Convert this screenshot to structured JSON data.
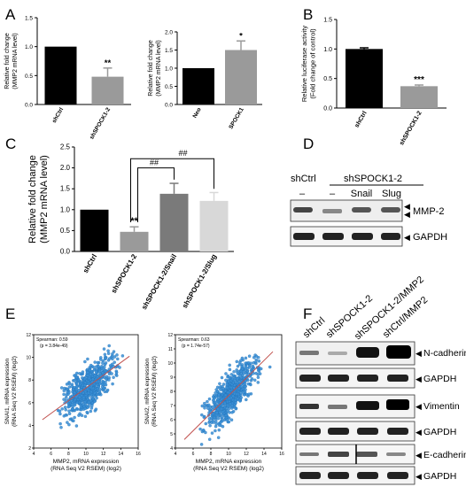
{
  "panels": {
    "A": "A",
    "B": "B",
    "C": "C",
    "D": "D",
    "E": "E",
    "F": "F"
  },
  "colors": {
    "black": "#000000",
    "grey": "#9a9a9a",
    "dark_grey": "#7a7a7a",
    "light_grey": "#d8d8d8",
    "scatter_point": "#3a8fd6",
    "fit_line": "#c0504d"
  },
  "chart_data": [
    {
      "id": "A1",
      "type": "bar",
      "ylabel": "Relative fold change\n(MMP2 mRNA level)",
      "ylim": [
        0,
        1.5
      ],
      "yticks": [
        "0.0",
        "0.5",
        "1.0",
        "1.5"
      ],
      "categories": [
        "shCtrl",
        "shSPOCK1-2"
      ],
      "values": [
        1.0,
        0.48
      ],
      "errors": [
        0,
        0.15
      ],
      "annotations": [
        "",
        "**"
      ]
    },
    {
      "id": "A2",
      "type": "bar",
      "ylabel": "Relative fold change\n(MMP2 mRNA level)",
      "ylim": [
        0,
        2.0
      ],
      "yticks": [
        "0.0",
        "0.5",
        "1.0",
        "1.5",
        "2.0"
      ],
      "categories": [
        "Neo",
        "SPOCK1"
      ],
      "values": [
        1.0,
        1.5
      ],
      "errors": [
        0,
        0.25
      ],
      "annotations": [
        "",
        "*"
      ]
    },
    {
      "id": "B",
      "type": "bar",
      "ylabel": "Relative luciferase activity\n(Fold change of control)",
      "ylim": [
        0,
        1.5
      ],
      "yticks": [
        "0.0",
        "0.5",
        "1.0",
        "1.5"
      ],
      "categories": [
        "shCtrl",
        "shSPOCK1-2"
      ],
      "values": [
        1.0,
        0.37
      ],
      "errors": [
        0.02,
        0.02
      ],
      "annotations": [
        "",
        "***"
      ]
    },
    {
      "id": "C",
      "type": "bar",
      "ylabel": "Relative fold change\n(MMP2 mRNA level)",
      "ylim": [
        0,
        2.5
      ],
      "yticks": [
        "0.0",
        "0.5",
        "1.0",
        "1.5",
        "2.0",
        "2.5"
      ],
      "categories": [
        "shCtrl",
        "shSPOCK1-2",
        "shSPOCK1-2/Snail",
        "shSPOCK1-2/Slug"
      ],
      "values": [
        1.0,
        0.47,
        1.38,
        1.21
      ],
      "errors": [
        0,
        0.12,
        0.25,
        0.2
      ],
      "annotations": [
        "",
        "**",
        "",
        ""
      ],
      "comparisons": [
        "##",
        "##"
      ]
    },
    {
      "id": "E1",
      "type": "scatter",
      "xlabel": "MMP2, mRNA expression\n(RNA Seq V2 RSEM) (log2)",
      "ylabel": "SNAI1, mRNA expression\n(RNA Seq V2 RSEM) (log2)",
      "xlim": [
        4,
        16
      ],
      "ylim": [
        2,
        12
      ],
      "xticks": [
        "4",
        "6",
        "8",
        "10",
        "12",
        "14",
        "16"
      ],
      "yticks": [
        "2",
        "4",
        "6",
        "8",
        "10",
        "12"
      ],
      "stat": [
        "Spearman: 0.59",
        "(p = 3.84e-49)"
      ],
      "fit": {
        "x": [
          5,
          15
        ],
        "y": [
          4.5,
          10.1
        ]
      }
    },
    {
      "id": "E2",
      "type": "scatter",
      "xlabel": "MMP2, mRNA expression\n(RNA Seq V2 RSEM) (log2)",
      "ylabel": "SNAI2, mRNA expression\n(RNA Seq V2 RSEM) (log2)",
      "xlim": [
        4,
        16
      ],
      "ylim": [
        4,
        12
      ],
      "xticks": [
        "4",
        "6",
        "8",
        "10",
        "12",
        "14",
        "16"
      ],
      "yticks": [
        "4",
        "5",
        "6",
        "7",
        "8",
        "9",
        "10",
        "11",
        "12"
      ],
      "stat": [
        "Spearman: 0.63",
        "(p = 1.74e-57)"
      ],
      "fit": {
        "x": [
          5,
          15
        ],
        "y": [
          4.6,
          10.8
        ]
      }
    }
  ],
  "blot_D": {
    "header": [
      "shCtrl",
      "shSPOCK1-2"
    ],
    "lanes": [
      "–",
      "–",
      "Snail",
      "Slug"
    ],
    "bands": [
      "MMP-2",
      "GAPDH"
    ]
  },
  "blot_F": {
    "lanes": [
      "shCtrl",
      "shSPOCK1-2",
      "shSPOCK1-2/MMP2",
      "shCtrl/MMP2"
    ],
    "bands": [
      "N-cadherin",
      "GAPDH",
      "Vimentin",
      "GAPDH",
      "E-cadherin",
      "GAPDH"
    ]
  }
}
